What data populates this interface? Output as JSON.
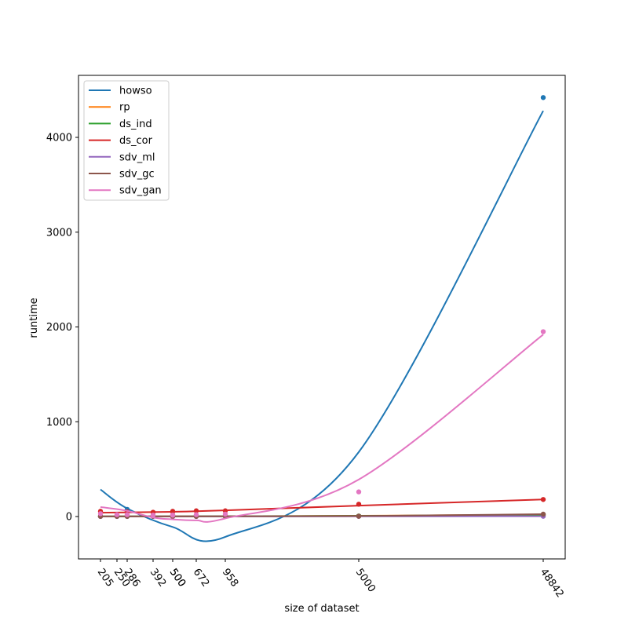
{
  "chart_data": {
    "type": "scatter",
    "title": "",
    "xlabel": "size of dataset",
    "ylabel": "runtime",
    "x_scale": "categorical-ordinal",
    "x_ticks": [
      "205",
      "250",
      "286",
      "392",
      "500",
      "500",
      "672",
      "958",
      "5000",
      "48842"
    ],
    "y_ticks": [
      "0",
      "1000",
      "2000",
      "3000",
      "4000"
    ],
    "ylim": [
      -450,
      4550
    ],
    "grid": false,
    "legend_position": "top-left",
    "series": [
      {
        "name": "howso",
        "color": "#1f77b4",
        "points": [
          [
            205,
            5
          ],
          [
            250,
            5
          ],
          [
            286,
            75
          ],
          [
            392,
            5
          ],
          [
            500,
            5
          ],
          [
            500,
            5
          ],
          [
            672,
            5
          ],
          [
            958,
            5
          ],
          [
            5000,
            5
          ],
          [
            48842,
            4420
          ]
        ],
        "fit": [
          [
            205,
            285
          ],
          [
            286,
            85
          ],
          [
            500,
            -110
          ],
          [
            958,
            -215
          ],
          [
            5000,
            680
          ],
          [
            48842,
            4280
          ]
        ]
      },
      {
        "name": "rp",
        "color": "#ff7f0e",
        "points": [
          [
            205,
            2
          ],
          [
            250,
            2
          ],
          [
            286,
            2
          ],
          [
            392,
            2
          ],
          [
            500,
            2
          ],
          [
            500,
            2
          ],
          [
            672,
            2
          ],
          [
            958,
            2
          ],
          [
            5000,
            5
          ],
          [
            48842,
            20
          ]
        ],
        "fit": [
          [
            205,
            1
          ],
          [
            958,
            3
          ],
          [
            5000,
            8
          ],
          [
            48842,
            20
          ]
        ]
      },
      {
        "name": "ds_ind",
        "color": "#2ca02c",
        "points": [
          [
            205,
            3
          ],
          [
            250,
            3
          ],
          [
            286,
            3
          ],
          [
            392,
            3
          ],
          [
            500,
            3
          ],
          [
            500,
            3
          ],
          [
            672,
            3
          ],
          [
            958,
            3
          ],
          [
            5000,
            5
          ],
          [
            48842,
            15
          ]
        ],
        "fit": [
          [
            205,
            2
          ],
          [
            958,
            3
          ],
          [
            5000,
            7
          ],
          [
            48842,
            15
          ]
        ]
      },
      {
        "name": "ds_cor",
        "color": "#d62728",
        "points": [
          [
            205,
            55
          ],
          [
            250,
            10
          ],
          [
            286,
            50
          ],
          [
            392,
            45
          ],
          [
            500,
            50
          ],
          [
            500,
            55
          ],
          [
            672,
            60
          ],
          [
            958,
            60
          ],
          [
            5000,
            130
          ],
          [
            48842,
            180
          ]
        ],
        "fit": [
          [
            205,
            40
          ],
          [
            500,
            50
          ],
          [
            958,
            65
          ],
          [
            5000,
            115
          ],
          [
            48842,
            180
          ]
        ]
      },
      {
        "name": "sdv_ml",
        "color": "#9467bd",
        "points": [
          [
            205,
            1
          ],
          [
            250,
            1
          ],
          [
            286,
            1
          ],
          [
            392,
            1
          ],
          [
            500,
            1
          ],
          [
            500,
            1
          ],
          [
            672,
            1
          ],
          [
            958,
            1
          ],
          [
            5000,
            2
          ],
          [
            48842,
            3
          ]
        ],
        "fit": [
          [
            205,
            1
          ],
          [
            958,
            1
          ],
          [
            5000,
            2
          ],
          [
            48842,
            3
          ]
        ]
      },
      {
        "name": "sdv_gc",
        "color": "#8c564b",
        "points": [
          [
            205,
            2
          ],
          [
            250,
            2
          ],
          [
            286,
            2
          ],
          [
            392,
            2
          ],
          [
            500,
            2
          ],
          [
            500,
            2
          ],
          [
            672,
            2
          ],
          [
            958,
            2
          ],
          [
            5000,
            3
          ],
          [
            48842,
            25
          ]
        ],
        "fit": [
          [
            205,
            1
          ],
          [
            958,
            3
          ],
          [
            5000,
            6
          ],
          [
            48842,
            25
          ]
        ]
      },
      {
        "name": "sdv_gan",
        "color": "#e377c2",
        "points": [
          [
            205,
            30
          ],
          [
            250,
            20
          ],
          [
            286,
            20
          ],
          [
            392,
            15
          ],
          [
            500,
            15
          ],
          [
            500,
            15
          ],
          [
            672,
            20
          ],
          [
            958,
            25
          ],
          [
            5000,
            260
          ],
          [
            48842,
            1950
          ]
        ],
        "fit": [
          [
            205,
            100
          ],
          [
            286,
            60
          ],
          [
            392,
            -10
          ],
          [
            500,
            -30
          ],
          [
            672,
            -40
          ],
          [
            958,
            -20
          ],
          [
            5000,
            390
          ],
          [
            48842,
            1920
          ]
        ]
      }
    ]
  }
}
